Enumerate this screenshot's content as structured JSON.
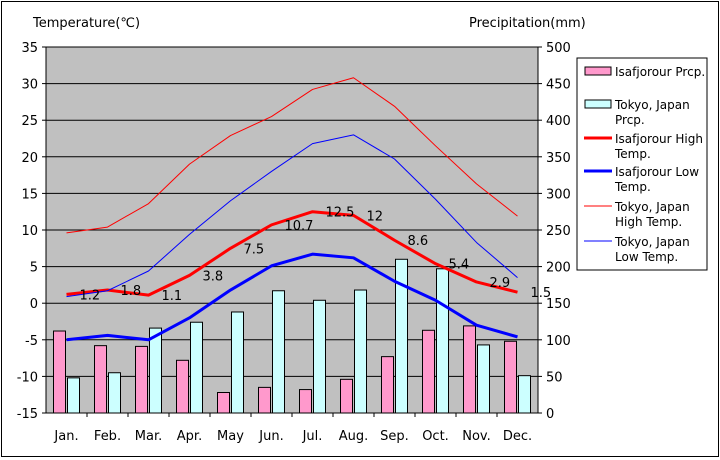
{
  "chart_data": {
    "type": "bar",
    "title": "",
    "ylabel_left": "Temperature(℃)",
    "ylabel_right": "Precipitation(mm)",
    "left_axis": {
      "min": -15,
      "max": 35,
      "step": 5
    },
    "right_axis": {
      "min": 0,
      "max": 500,
      "step": 50
    },
    "categories": [
      "Jan.",
      "Feb.",
      "Mar.",
      "Apr.",
      "May",
      "Jun.",
      "Jul.",
      "Aug.",
      "Sep.",
      "Oct.",
      "Nov.",
      "Dec."
    ],
    "bar_series": [
      {
        "name": "Isafjorour Prcp.",
        "color": "#ff99cc",
        "axis": "right",
        "values": [
          112,
          92,
          91,
          72,
          28,
          35,
          32,
          46,
          77,
          113,
          119,
          98
        ]
      },
      {
        "name": "Tokyo, Japan Prcp.",
        "color": "#ccffff",
        "axis": "right",
        "values": [
          48,
          55,
          116,
          124,
          138,
          167,
          154,
          168,
          210,
          197,
          93,
          51
        ]
      }
    ],
    "line_series": [
      {
        "name": "Isafjorour High Temp.",
        "color": "#ff0000",
        "width": 3,
        "axis": "left",
        "values": [
          1.2,
          1.8,
          1.1,
          3.8,
          7.5,
          10.7,
          12.5,
          12,
          8.6,
          5.4,
          2.9,
          1.5
        ],
        "data_labels": [
          "1.2",
          "1.8",
          "1.1",
          "3.8",
          "7.5",
          "10.7",
          "12.5",
          "12",
          "8.6",
          "5.4",
          "2.9",
          "1.5"
        ]
      },
      {
        "name": "Isafjorour Low Temp.",
        "color": "#0000ff",
        "width": 3,
        "axis": "left",
        "values": [
          -5,
          -4.4,
          -5,
          -2,
          1.8,
          5.1,
          6.7,
          6.2,
          3,
          0.4,
          -3,
          -4.6
        ]
      },
      {
        "name": "Tokyo, Japan High Temp.",
        "color": "#ff0000",
        "width": 1,
        "axis": "left",
        "values": [
          9.6,
          10.4,
          13.6,
          19,
          22.9,
          25.5,
          29.2,
          30.8,
          26.9,
          21.5,
          16.3,
          11.9
        ]
      },
      {
        "name": "Tokyo, Japan Low Temp.",
        "color": "#0000ff",
        "width": 1,
        "axis": "left",
        "values": [
          0.9,
          1.7,
          4.4,
          9.4,
          14,
          18,
          21.8,
          23,
          19.7,
          14.2,
          8.3,
          3.5
        ]
      }
    ],
    "legend": {
      "position": "right",
      "entries": [
        [
          "Isafjorour Prcp."
        ],
        [
          "Tokyo, Japan",
          "Prcp."
        ],
        [
          "Isafjorour High",
          "Temp."
        ],
        [
          "Isafjorour Low",
          "Temp."
        ],
        [
          "Tokyo, Japan",
          "High Temp."
        ],
        [
          "Tokyo, Japan",
          "Low Temp."
        ]
      ]
    },
    "grid": true,
    "plot_background": "#c0c0c0"
  }
}
